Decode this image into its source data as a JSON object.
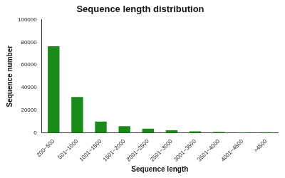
{
  "chart_data": {
    "type": "bar",
    "title": "Sequence length distribution",
    "x_label": "Sequence length",
    "y_label": "Sequence number",
    "categories": [
      "200~500",
      "501~1000",
      "1001~1500",
      "1501~2000",
      "2001~2500",
      "2501~3000",
      "3001~3500",
      "3501~4000",
      "4001~4500",
      ">4500"
    ],
    "values": [
      76500,
      31800,
      10000,
      6000,
      3800,
      2300,
      1400,
      900,
      500,
      600
    ],
    "color": "#1a8a1a",
    "ylim": [
      0,
      100000
    ],
    "yticks": [
      0,
      20000,
      40000,
      60000,
      80000,
      100000
    ],
    "grid": false
  }
}
